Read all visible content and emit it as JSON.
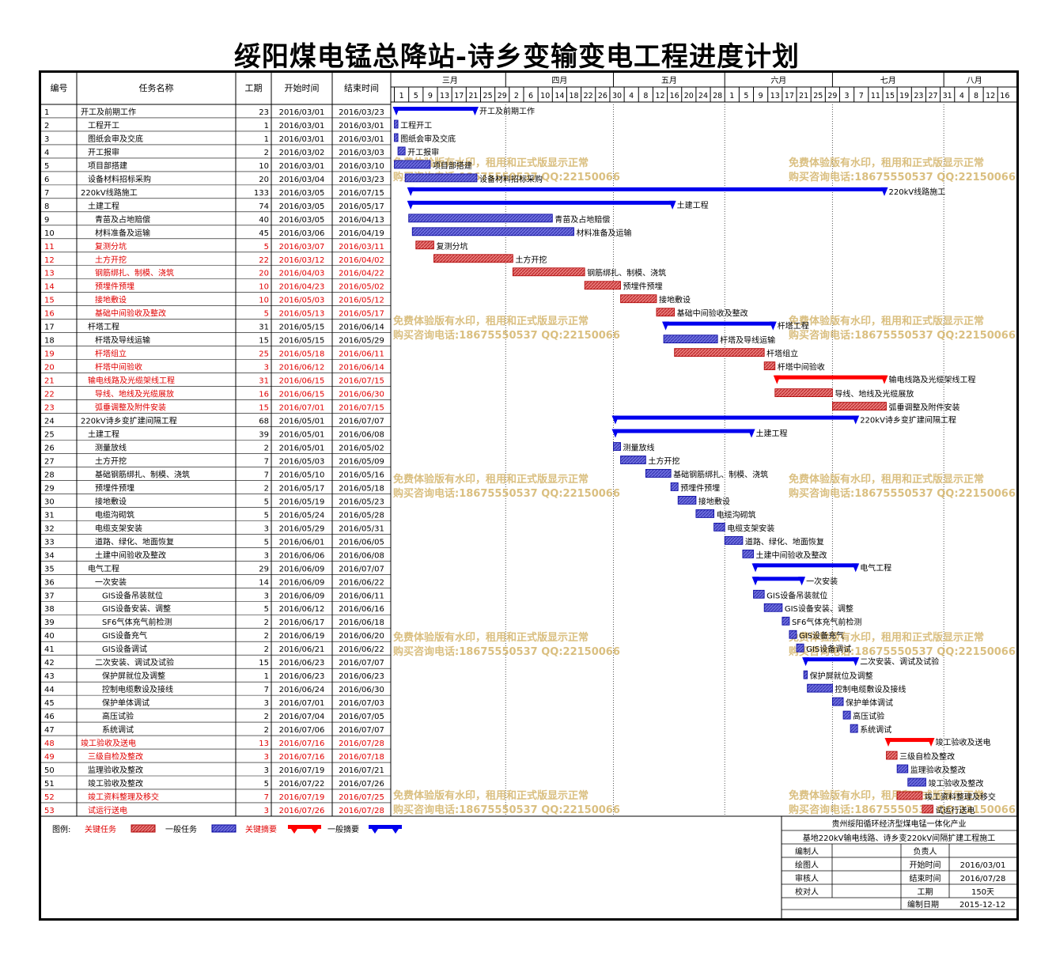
{
  "title": "绥阳煤电锰总降站-诗乡变输变电工程进度计划",
  "columns": [
    "编号",
    "任务名称",
    "工期",
    "开始时间",
    "结束时间"
  ],
  "timeline": {
    "months": [
      "三月",
      "四月",
      "五月",
      "六月",
      "七月",
      "八月"
    ],
    "day_ticks": [
      "1",
      "5",
      "9",
      "13",
      "17",
      "21",
      "25",
      "29",
      "2",
      "6",
      "10",
      "14",
      "18",
      "22",
      "26",
      "30",
      "4",
      "8",
      "12",
      "16",
      "20",
      "24",
      "28",
      "1",
      "5",
      "9",
      "13",
      "17",
      "21",
      "25",
      "29",
      "3",
      "7",
      "11",
      "15",
      "19",
      "23",
      "27",
      "31",
      "4",
      "8",
      "12",
      "16"
    ]
  },
  "colors": {
    "critical_text": "#e00000",
    "normal_text": "#000000",
    "critical_bar": "#e06060",
    "normal_bar": "#5b5bd6",
    "critical_summary": "#ff0000",
    "normal_summary": "#0000ee",
    "watermark": "#d4b46a"
  },
  "tasks": [
    {
      "id": "1",
      "name": "开工及前期工作",
      "dur": "23",
      "start": "2016/03/01",
      "end": "2016/03/23",
      "lvl": 1,
      "kind": "summary",
      "crit": false
    },
    {
      "id": "2",
      "name": "工程开工",
      "dur": "1",
      "start": "2016/03/01",
      "end": "2016/03/01",
      "lvl": 2,
      "kind": "task",
      "crit": false
    },
    {
      "id": "3",
      "name": "图纸会审及交底",
      "dur": "1",
      "start": "2016/03/01",
      "end": "2016/03/01",
      "lvl": 2,
      "kind": "task",
      "crit": false
    },
    {
      "id": "4",
      "name": "开工报审",
      "dur": "2",
      "start": "2016/03/02",
      "end": "2016/03/03",
      "lvl": 2,
      "kind": "task",
      "crit": false
    },
    {
      "id": "5",
      "name": "项目部搭建",
      "dur": "10",
      "start": "2016/03/01",
      "end": "2016/03/10",
      "lvl": 2,
      "kind": "task",
      "crit": false
    },
    {
      "id": "6",
      "name": "设备材料招标采购",
      "dur": "20",
      "start": "2016/03/04",
      "end": "2016/03/23",
      "lvl": 2,
      "kind": "task",
      "crit": false
    },
    {
      "id": "7",
      "name": "220kV线路施工",
      "dur": "133",
      "start": "2016/03/05",
      "end": "2016/07/15",
      "lvl": 1,
      "kind": "summary",
      "crit": false
    },
    {
      "id": "8",
      "name": "土建工程",
      "dur": "74",
      "start": "2016/03/05",
      "end": "2016/05/17",
      "lvl": 2,
      "kind": "summary",
      "crit": false
    },
    {
      "id": "9",
      "name": "青苗及占地赔偿",
      "dur": "40",
      "start": "2016/03/05",
      "end": "2016/04/13",
      "lvl": 3,
      "kind": "task",
      "crit": false
    },
    {
      "id": "10",
      "name": "材料准备及运输",
      "dur": "45",
      "start": "2016/03/06",
      "end": "2016/04/19",
      "lvl": 3,
      "kind": "task",
      "crit": false
    },
    {
      "id": "11",
      "name": "复测分坑",
      "dur": "5",
      "start": "2016/03/07",
      "end": "2016/03/11",
      "lvl": 3,
      "kind": "task",
      "crit": true
    },
    {
      "id": "12",
      "name": "土方开挖",
      "dur": "22",
      "start": "2016/03/12",
      "end": "2016/04/02",
      "lvl": 3,
      "kind": "task",
      "crit": true
    },
    {
      "id": "13",
      "name": "钢筋绑扎、制模、浇筑",
      "dur": "20",
      "start": "2016/04/03",
      "end": "2016/04/22",
      "lvl": 3,
      "kind": "task",
      "crit": true
    },
    {
      "id": "14",
      "name": "预埋件预埋",
      "dur": "10",
      "start": "2016/04/23",
      "end": "2016/05/02",
      "lvl": 3,
      "kind": "task",
      "crit": true
    },
    {
      "id": "15",
      "name": "接地敷设",
      "dur": "10",
      "start": "2016/05/03",
      "end": "2016/05/12",
      "lvl": 3,
      "kind": "task",
      "crit": true
    },
    {
      "id": "16",
      "name": "基础中间验收及整改",
      "dur": "5",
      "start": "2016/05/13",
      "end": "2016/05/17",
      "lvl": 3,
      "kind": "task",
      "crit": true
    },
    {
      "id": "17",
      "name": "杆塔工程",
      "dur": "31",
      "start": "2016/05/15",
      "end": "2016/06/14",
      "lvl": 2,
      "kind": "summary",
      "crit": false
    },
    {
      "id": "18",
      "name": "杆塔及导线运输",
      "dur": "15",
      "start": "2016/05/15",
      "end": "2016/05/29",
      "lvl": 3,
      "kind": "task",
      "crit": false
    },
    {
      "id": "19",
      "name": "杆塔组立",
      "dur": "25",
      "start": "2016/05/18",
      "end": "2016/06/11",
      "lvl": 3,
      "kind": "task",
      "crit": true
    },
    {
      "id": "20",
      "name": "杆塔中间验收",
      "dur": "3",
      "start": "2016/06/12",
      "end": "2016/06/14",
      "lvl": 3,
      "kind": "task",
      "crit": true
    },
    {
      "id": "21",
      "name": "输电线路及光缆架线工程",
      "dur": "31",
      "start": "2016/06/15",
      "end": "2016/07/15",
      "lvl": 2,
      "kind": "summary",
      "crit": true
    },
    {
      "id": "22",
      "name": "导线、地线及光缆展放",
      "dur": "16",
      "start": "2016/06/15",
      "end": "2016/06/30",
      "lvl": 3,
      "kind": "task",
      "crit": true
    },
    {
      "id": "23",
      "name": "弧垂调整及附件安装",
      "dur": "15",
      "start": "2016/07/01",
      "end": "2016/07/15",
      "lvl": 3,
      "kind": "task",
      "crit": true
    },
    {
      "id": "24",
      "name": "220kV诗乡变扩建间隔工程",
      "dur": "68",
      "start": "2016/05/01",
      "end": "2016/07/07",
      "lvl": 1,
      "kind": "summary",
      "crit": false
    },
    {
      "id": "25",
      "name": "土建工程",
      "dur": "39",
      "start": "2016/05/01",
      "end": "2016/06/08",
      "lvl": 2,
      "kind": "summary",
      "crit": false
    },
    {
      "id": "26",
      "name": "测量放线",
      "dur": "2",
      "start": "2016/05/01",
      "end": "2016/05/02",
      "lvl": 3,
      "kind": "task",
      "crit": false
    },
    {
      "id": "27",
      "name": "土方开挖",
      "dur": "7",
      "start": "2016/05/03",
      "end": "2016/05/09",
      "lvl": 3,
      "kind": "task",
      "crit": false
    },
    {
      "id": "28",
      "name": "基础钢筋绑扎、制模、浇筑",
      "dur": "7",
      "start": "2016/05/10",
      "end": "2016/05/16",
      "lvl": 3,
      "kind": "task",
      "crit": false
    },
    {
      "id": "29",
      "name": "预埋件预埋",
      "dur": "2",
      "start": "2016/05/17",
      "end": "2016/05/18",
      "lvl": 3,
      "kind": "task",
      "crit": false
    },
    {
      "id": "30",
      "name": "接地敷设",
      "dur": "5",
      "start": "2016/05/19",
      "end": "2016/05/23",
      "lvl": 3,
      "kind": "task",
      "crit": false
    },
    {
      "id": "31",
      "name": "电缆沟砌筑",
      "dur": "5",
      "start": "2016/05/24",
      "end": "2016/05/28",
      "lvl": 3,
      "kind": "task",
      "crit": false
    },
    {
      "id": "32",
      "name": "电缆支架安装",
      "dur": "3",
      "start": "2016/05/29",
      "end": "2016/05/31",
      "lvl": 3,
      "kind": "task",
      "crit": false
    },
    {
      "id": "33",
      "name": "道路、绿化、地面恢复",
      "dur": "5",
      "start": "2016/06/01",
      "end": "2016/06/05",
      "lvl": 3,
      "kind": "task",
      "crit": false
    },
    {
      "id": "34",
      "name": "土建中间验收及整改",
      "dur": "3",
      "start": "2016/06/06",
      "end": "2016/06/08",
      "lvl": 3,
      "kind": "task",
      "crit": false
    },
    {
      "id": "35",
      "name": "电气工程",
      "dur": "29",
      "start": "2016/06/09",
      "end": "2016/07/07",
      "lvl": 2,
      "kind": "summary",
      "crit": false
    },
    {
      "id": "36",
      "name": "一次安装",
      "dur": "14",
      "start": "2016/06/09",
      "end": "2016/06/22",
      "lvl": 3,
      "kind": "summary",
      "crit": false
    },
    {
      "id": "37",
      "name": "GIS设备吊装就位",
      "dur": "3",
      "start": "2016/06/09",
      "end": "2016/06/11",
      "lvl": 4,
      "kind": "task",
      "crit": false
    },
    {
      "id": "38",
      "name": "GIS设备安装、调整",
      "dur": "5",
      "start": "2016/06/12",
      "end": "2016/06/16",
      "lvl": 4,
      "kind": "task",
      "crit": false
    },
    {
      "id": "39",
      "name": "SF6气体充气前检测",
      "dur": "2",
      "start": "2016/06/17",
      "end": "2016/06/18",
      "lvl": 4,
      "kind": "task",
      "crit": false
    },
    {
      "id": "40",
      "name": "GIS设备充气",
      "dur": "2",
      "start": "2016/06/19",
      "end": "2016/06/20",
      "lvl": 4,
      "kind": "task",
      "crit": false
    },
    {
      "id": "41",
      "name": "GIS设备调试",
      "dur": "2",
      "start": "2016/06/21",
      "end": "2016/06/22",
      "lvl": 4,
      "kind": "task",
      "crit": false
    },
    {
      "id": "42",
      "name": "二次安装、调试及试验",
      "dur": "15",
      "start": "2016/06/23",
      "end": "2016/07/07",
      "lvl": 3,
      "kind": "summary",
      "crit": false
    },
    {
      "id": "43",
      "name": "保护屏就位及调整",
      "dur": "1",
      "start": "2016/06/23",
      "end": "2016/06/23",
      "lvl": 4,
      "kind": "task",
      "crit": false
    },
    {
      "id": "44",
      "name": "控制电缆敷设及接线",
      "dur": "7",
      "start": "2016/06/24",
      "end": "2016/06/30",
      "lvl": 4,
      "kind": "task",
      "crit": false
    },
    {
      "id": "45",
      "name": "保护单体调试",
      "dur": "3",
      "start": "2016/07/01",
      "end": "2016/07/03",
      "lvl": 4,
      "kind": "task",
      "crit": false
    },
    {
      "id": "46",
      "name": "高压试验",
      "dur": "2",
      "start": "2016/07/04",
      "end": "2016/07/05",
      "lvl": 4,
      "kind": "task",
      "crit": false
    },
    {
      "id": "47",
      "name": "系统调试",
      "dur": "2",
      "start": "2016/07/06",
      "end": "2016/07/07",
      "lvl": 4,
      "kind": "task",
      "crit": false
    },
    {
      "id": "48",
      "name": "竣工验收及送电",
      "dur": "13",
      "start": "2016/07/16",
      "end": "2016/07/28",
      "lvl": 1,
      "kind": "summary",
      "crit": true
    },
    {
      "id": "49",
      "name": "三级自检及整改",
      "dur": "3",
      "start": "2016/07/16",
      "end": "2016/07/18",
      "lvl": 2,
      "kind": "task",
      "crit": true
    },
    {
      "id": "50",
      "name": "监理验收及整改",
      "dur": "3",
      "start": "2016/07/19",
      "end": "2016/07/21",
      "lvl": 2,
      "kind": "task",
      "crit": false
    },
    {
      "id": "51",
      "name": "竣工验收及整改",
      "dur": "5",
      "start": "2016/07/22",
      "end": "2016/07/26",
      "lvl": 2,
      "kind": "task",
      "crit": false
    },
    {
      "id": "52",
      "name": "竣工资料整理及移交",
      "dur": "7",
      "start": "2016/07/19",
      "end": "2016/07/25",
      "lvl": 2,
      "kind": "task",
      "crit": true
    },
    {
      "id": "53",
      "name": "试运行送电",
      "dur": "3",
      "start": "2016/07/26",
      "end": "2016/07/28",
      "lvl": 2,
      "kind": "task",
      "crit": true
    }
  ],
  "legend": {
    "label": "图例:",
    "critical_task": "关键任务",
    "normal_task": "一般任务",
    "critical_summary": "关键摘要",
    "normal_summary": "一般摘要"
  },
  "watermark": {
    "line1": "免费体验版有水印，租用和正式版显示正常",
    "line2": "购买咨询电话:18675550537 QQ:22150066"
  },
  "info": {
    "org1": "贵州绥阳循环经济型煤电锰一体化产业",
    "org2": "基地220kV输电线路、诗乡变220kV间隔扩建工程施工",
    "labels": {
      "compiler": "编制人",
      "drawer": "绘图人",
      "reviewer": "审核人",
      "proofreader": "校对人",
      "leader": "负责人",
      "start": "开始时间",
      "end": "结束时间",
      "duration": "工期",
      "date": "编制日期"
    },
    "start": "2016/03/01",
    "end": "2016/07/28",
    "duration": "150天",
    "date": "2015-12-12"
  }
}
